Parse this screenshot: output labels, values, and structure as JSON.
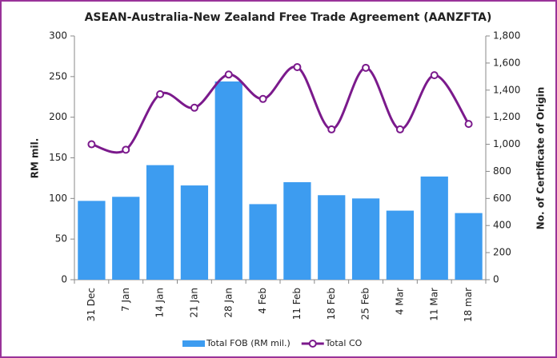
{
  "chart_data": {
    "type": "bar-line",
    "title": "ASEAN-Australia-New Zealand Free Trade Agreement (AANZFTA)",
    "y_label": "RM mil.",
    "y2_label": "No. of Certificate of Origin",
    "categories": [
      "31 Dec",
      "7 Jan",
      "14 Jan",
      "21 Jan",
      "28 Jan",
      "4 Feb",
      "11 Feb",
      "18 Feb",
      "25 Feb",
      "4 Mar",
      "11 Mar",
      "18 mar"
    ],
    "series": [
      {
        "name": "Total FOB (RM mil.)",
        "type": "bar",
        "color": "#3d9cf0",
        "values": [
          97,
          102,
          141,
          116,
          244,
          93,
          120,
          104,
          100,
          85,
          127,
          82
        ]
      },
      {
        "name": "Total CO",
        "type": "line",
        "axis": "y2",
        "color": "#7b1a8c",
        "values": [
          1000,
          960,
          1370,
          1270,
          1515,
          1335,
          1570,
          1110,
          1565,
          1110,
          1510,
          1150
        ]
      }
    ],
    "ylim": [
      0,
      300
    ],
    "yticks": [
      0,
      50,
      100,
      150,
      200,
      250,
      300
    ],
    "y2lim": [
      0,
      1800
    ],
    "y2ticks": [
      0,
      200,
      400,
      600,
      800,
      {
        "value": 1000,
        "label": "1,000"
      },
      {
        "value": 1200,
        "label": "1,200"
      },
      {
        "value": 1400,
        "label": "1,400"
      },
      {
        "value": 1600,
        "label": "1,600"
      },
      {
        "value": 1800,
        "label": "1,800"
      }
    ],
    "legend": "bottom"
  }
}
